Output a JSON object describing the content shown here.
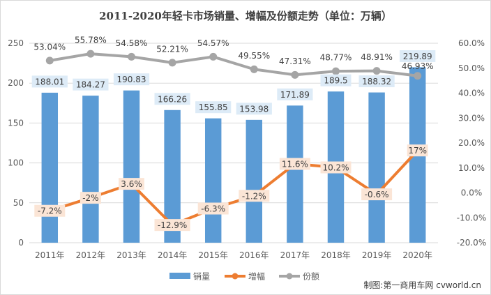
{
  "chart_data": {
    "type": "bar",
    "title": "2011-2020年轻卡市场销量、增幅及份额走势（单位：万辆）",
    "categories": [
      "2011年",
      "2012年",
      "2013年",
      "2014年",
      "2015年",
      "2016年",
      "2017年",
      "2018年",
      "2019年",
      "2020年"
    ],
    "series": [
      {
        "name": "销量",
        "type": "bar",
        "axis": "left",
        "color": "#5B9BD5",
        "values": [
          188.01,
          184.27,
          190.83,
          166.26,
          155.85,
          153.98,
          171.89,
          189.5,
          188.32,
          219.89
        ],
        "labels": [
          "188.01",
          "184.27",
          "190.83",
          "166.26",
          "155.85",
          "153.98",
          "171.89",
          "189.5",
          "188.32",
          "219.89"
        ]
      },
      {
        "name": "增幅",
        "type": "line",
        "axis": "right",
        "color": "#ED7D31",
        "values": [
          -7.2,
          -2,
          3.6,
          -12.9,
          -6.3,
          -1.2,
          11.6,
          10.2,
          -0.6,
          17
        ],
        "labels": [
          "-7.2%",
          "-2%",
          "3.6%",
          "-12.9%",
          "-6.3%",
          "-1.2%",
          "11.6%",
          "10.2%",
          "-0.6%",
          "17%"
        ]
      },
      {
        "name": "份额",
        "type": "line",
        "axis": "right",
        "color": "#A5A5A5",
        "values": [
          53.04,
          55.78,
          54.58,
          52.21,
          54.57,
          49.55,
          47.31,
          48.77,
          48.91,
          46.93
        ],
        "labels": [
          "53.04%",
          "55.78%",
          "54.58%",
          "52.21%",
          "54.57%",
          "49.55%",
          "47.31%",
          "48.77%",
          "48.91%",
          "46.93%"
        ]
      }
    ],
    "ylim_left": [
      0,
      250
    ],
    "yticks_left": [
      0,
      50,
      100,
      150,
      200,
      250
    ],
    "ylim_right": [
      -20,
      60
    ],
    "yticks_right": [
      -20,
      -10,
      0,
      10,
      20,
      30,
      40,
      50,
      60
    ],
    "yticks_right_labels": [
      "-20.0%",
      "-10.0%",
      "0.0%",
      "10.0%",
      "20.0%",
      "30.0%",
      "40.0%",
      "50.0%",
      "60.0%"
    ],
    "grid": true,
    "legend": "bottom-center"
  },
  "credit": "制图:第一商用车网 cvworld.cn",
  "colors": {
    "bar_label_bg": "#DDEBF7",
    "growth_label_bg": "#FBE5D6",
    "grid": "#D9D9D9"
  }
}
